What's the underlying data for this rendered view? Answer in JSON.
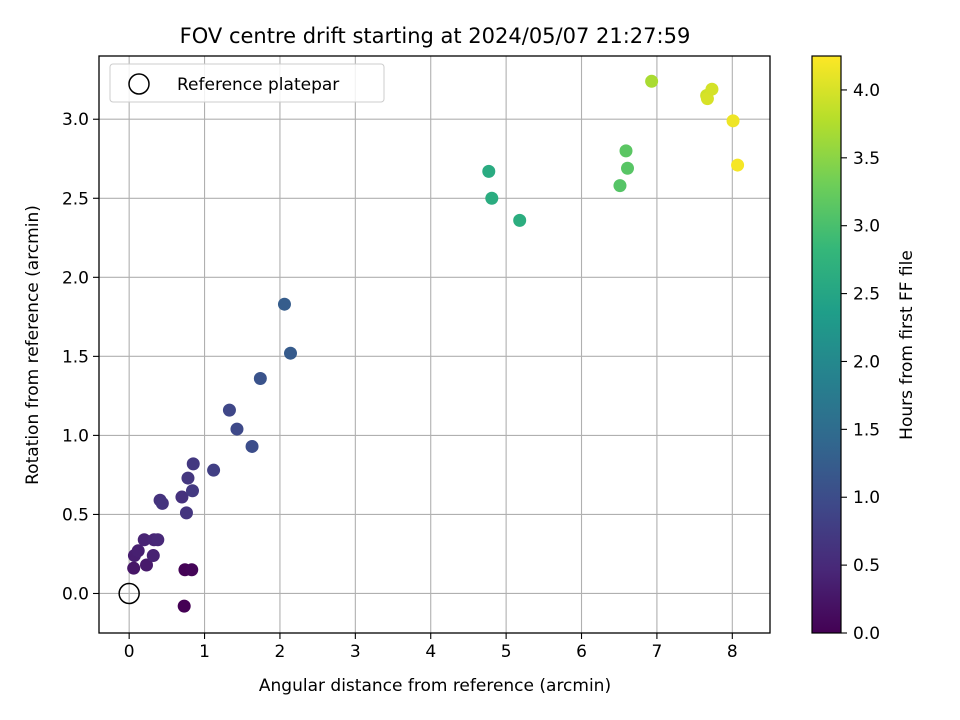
{
  "chart_data": {
    "type": "scatter",
    "title": "FOV centre drift starting at 2024/05/07 21:27:59",
    "xlabel": "Angular distance from reference (arcmin)",
    "ylabel": "Rotation from reference (arcmin)",
    "xlim": [
      -0.4,
      8.5
    ],
    "ylim": [
      -0.25,
      3.4
    ],
    "xticks": [
      0,
      1,
      2,
      3,
      4,
      5,
      6,
      7,
      8
    ],
    "xtick_labels": [
      "0",
      "1",
      "2",
      "3",
      "4",
      "5",
      "6",
      "7",
      "8"
    ],
    "yticks": [
      0.0,
      0.5,
      1.0,
      1.5,
      2.0,
      2.5,
      3.0
    ],
    "ytick_labels": [
      "0.0",
      "0.5",
      "1.0",
      "1.5",
      "2.0",
      "2.5",
      "3.0"
    ],
    "grid": true,
    "legend": {
      "placement": "upper-left",
      "entries": [
        {
          "label": "Reference platepar",
          "marker": "open-circle",
          "x": 0,
          "y": 0
        }
      ]
    },
    "colorbar": {
      "label": "Hours from first FF file",
      "range": [
        0.0,
        4.25
      ],
      "ticks": [
        0.0,
        0.5,
        1.0,
        1.5,
        2.0,
        2.5,
        3.0,
        3.5,
        4.0
      ],
      "tick_labels": [
        "0.0",
        "0.5",
        "1.0",
        "1.5",
        "2.0",
        "2.5",
        "3.0",
        "3.5",
        "4.0"
      ],
      "colormap": "viridis",
      "stops": [
        "#440154",
        "#482878",
        "#3e4989",
        "#31688e",
        "#26828e",
        "#1f9e89",
        "#35b779",
        "#6ece58",
        "#b5de2b",
        "#fde725"
      ]
    },
    "points": [
      {
        "x": 0.73,
        "y": -0.08,
        "c": 0.0
      },
      {
        "x": 0.74,
        "y": 0.15,
        "c": 0.03
      },
      {
        "x": 0.83,
        "y": 0.15,
        "c": 0.05
      },
      {
        "x": 0.06,
        "y": 0.16,
        "c": 0.25
      },
      {
        "x": 0.23,
        "y": 0.18,
        "c": 0.3
      },
      {
        "x": 0.32,
        "y": 0.24,
        "c": 0.4
      },
      {
        "x": 0.07,
        "y": 0.24,
        "c": 0.35
      },
      {
        "x": 0.12,
        "y": 0.27,
        "c": 0.38
      },
      {
        "x": 0.2,
        "y": 0.34,
        "c": 0.42
      },
      {
        "x": 0.33,
        "y": 0.34,
        "c": 0.45
      },
      {
        "x": 0.38,
        "y": 0.34,
        "c": 0.48
      },
      {
        "x": 0.41,
        "y": 0.59,
        "c": 0.62
      },
      {
        "x": 0.44,
        "y": 0.57,
        "c": 0.65
      },
      {
        "x": 0.7,
        "y": 0.61,
        "c": 0.6
      },
      {
        "x": 0.76,
        "y": 0.51,
        "c": 0.66
      },
      {
        "x": 0.78,
        "y": 0.73,
        "c": 0.68
      },
      {
        "x": 0.84,
        "y": 0.65,
        "c": 0.72
      },
      {
        "x": 0.85,
        "y": 0.82,
        "c": 0.7
      },
      {
        "x": 1.12,
        "y": 0.78,
        "c": 0.8
      },
      {
        "x": 1.33,
        "y": 1.16,
        "c": 0.92
      },
      {
        "x": 1.43,
        "y": 1.04,
        "c": 0.95
      },
      {
        "x": 1.63,
        "y": 0.93,
        "c": 1.0
      },
      {
        "x": 1.74,
        "y": 1.36,
        "c": 1.1
      },
      {
        "x": 2.06,
        "y": 1.83,
        "c": 1.25
      },
      {
        "x": 2.14,
        "y": 1.52,
        "c": 1.22
      },
      {
        "x": 4.77,
        "y": 2.67,
        "c": 2.6
      },
      {
        "x": 4.81,
        "y": 2.5,
        "c": 2.62
      },
      {
        "x": 5.18,
        "y": 2.36,
        "c": 2.65
      },
      {
        "x": 6.51,
        "y": 2.58,
        "c": 3.1
      },
      {
        "x": 6.59,
        "y": 2.8,
        "c": 3.15
      },
      {
        "x": 6.61,
        "y": 2.69,
        "c": 3.12
      },
      {
        "x": 6.93,
        "y": 3.24,
        "c": 3.7
      },
      {
        "x": 7.66,
        "y": 3.15,
        "c": 3.95
      },
      {
        "x": 7.67,
        "y": 3.13,
        "c": 4.0
      },
      {
        "x": 7.73,
        "y": 3.19,
        "c": 3.98
      },
      {
        "x": 8.01,
        "y": 2.99,
        "c": 4.15
      },
      {
        "x": 8.07,
        "y": 2.71,
        "c": 4.2
      }
    ]
  }
}
